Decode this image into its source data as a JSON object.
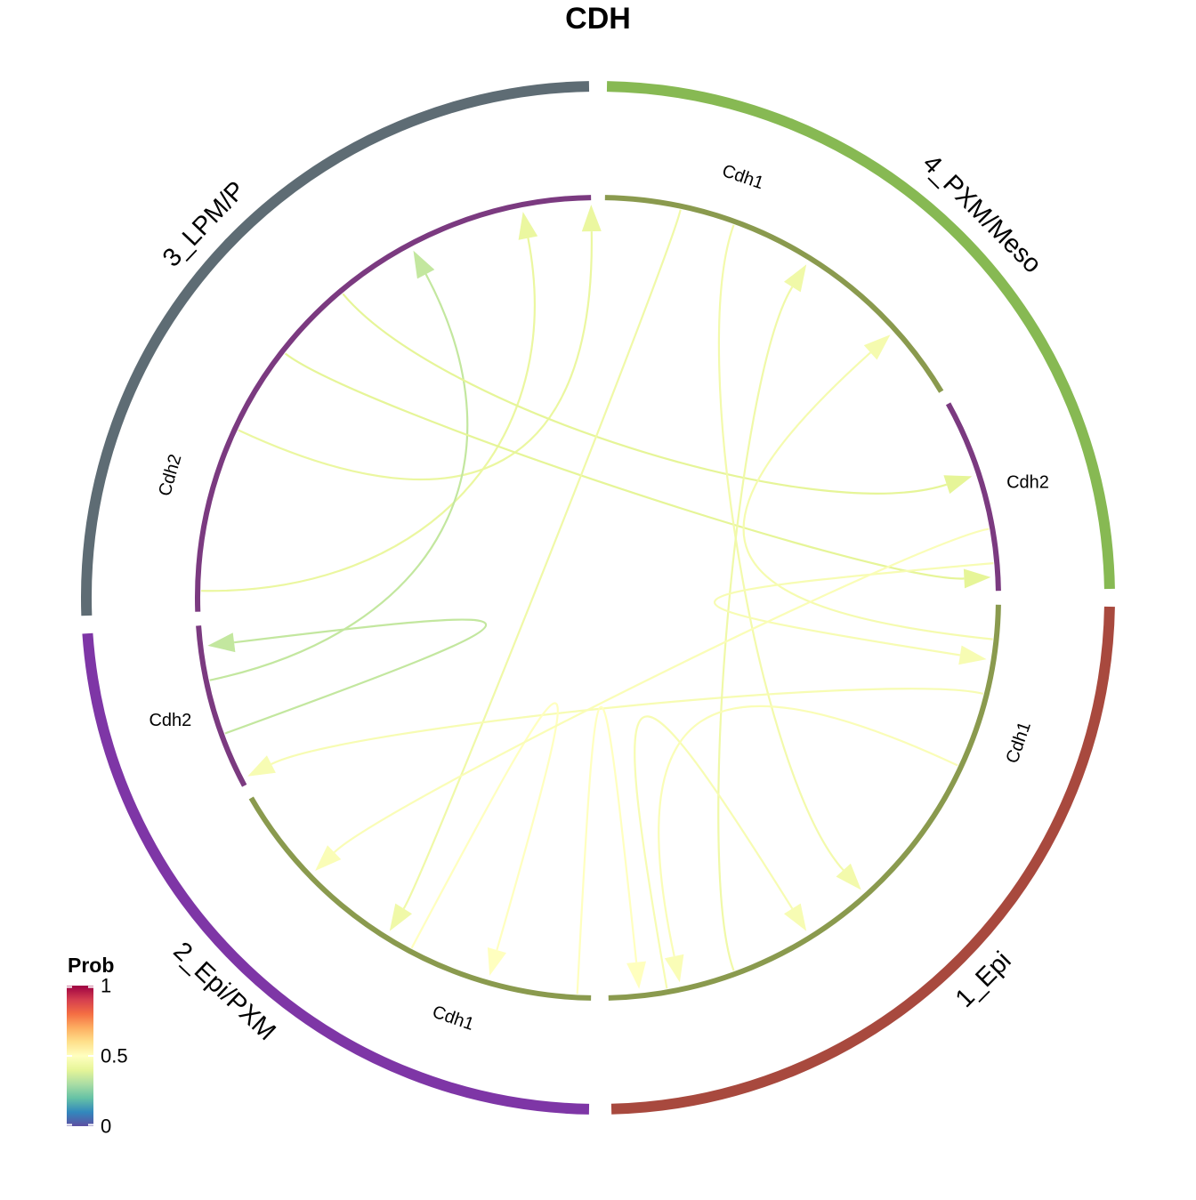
{
  "title": "CDH",
  "groups": [
    {
      "name": "4_PXM/Meso",
      "color": "#87b953",
      "start": 1,
      "end": 89
    },
    {
      "name": "1_Epi",
      "color": "#a8493e",
      "start": 91,
      "end": 178.5
    },
    {
      "name": "2_Epi/PXM",
      "color": "#7e36a6",
      "start": 181,
      "end": 266
    },
    {
      "name": "3_LPM/P",
      "color": "#5e6c74",
      "start": 268,
      "end": 359
    }
  ],
  "sectors": [
    {
      "label": "Cdh1",
      "color": "#8a9a4e",
      "start": 1,
      "end": 59
    },
    {
      "label": "Cdh2",
      "color": "#7b3a80",
      "start": 61,
      "end": 89
    },
    {
      "label": "Cdh1",
      "color": "#8a9a4e",
      "start": 91,
      "end": 178.5
    },
    {
      "label": "Cdh1",
      "color": "#8a9a4e",
      "start": 181,
      "end": 240
    },
    {
      "label": "Cdh2",
      "color": "#7b3a80",
      "start": 242,
      "end": 266
    },
    {
      "label": "Cdh2",
      "color": "#7b3a80",
      "start": 268,
      "end": 359
    }
  ],
  "links": [
    {
      "from": 295,
      "to": 359,
      "prob": 0.42
    },
    {
      "from": 271,
      "to": 349,
      "prob": 0.42
    },
    {
      "from": 258,
      "to": 332,
      "prob": 0.34
    },
    {
      "from": 308,
      "to": 87,
      "prob": 0.4
    },
    {
      "from": 320,
      "to": 72,
      "prob": 0.4
    },
    {
      "from": 250,
      "to": 263,
      "prob": 0.34
    },
    {
      "from": 12,
      "to": 212,
      "prob": 0.44
    },
    {
      "from": 20,
      "to": 138,
      "prob": 0.45
    },
    {
      "from": 104,
      "to": 243,
      "prob": 0.47
    },
    {
      "from": 208,
      "to": 196,
      "prob": 0.5
    },
    {
      "from": 160,
      "to": 32,
      "prob": 0.44
    },
    {
      "from": 96,
      "to": 48,
      "prob": 0.46
    },
    {
      "from": 85,
      "to": 99,
      "prob": 0.47
    },
    {
      "from": 183,
      "to": 174,
      "prob": 0.5
    },
    {
      "from": 170,
      "to": 148,
      "prob": 0.47
    },
    {
      "from": 115,
      "to": 168,
      "prob": 0.48
    },
    {
      "from": 80,
      "to": 226,
      "prob": 0.48
    }
  ],
  "legend": {
    "title": "Prob",
    "ticks": [
      {
        "value": 1,
        "label": "1"
      },
      {
        "value": 0.5,
        "label": "0.5"
      },
      {
        "value": 0,
        "label": "0"
      }
    ],
    "gradient": [
      "#5e4fa2",
      "#3288bd",
      "#66c2a5",
      "#abdda4",
      "#e6f598",
      "#ffffbf",
      "#fee08b",
      "#fdae61",
      "#f46d43",
      "#d53e4f",
      "#9e0142"
    ]
  }
}
